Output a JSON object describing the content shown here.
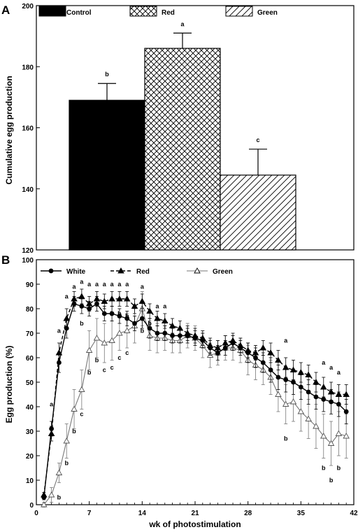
{
  "chart_data": [
    {
      "panel": "A",
      "type": "bar",
      "ylabel": "Cumulative egg production",
      "ylim": [
        120,
        200
      ],
      "yticks": [
        "120",
        "140",
        "160",
        "180",
        "200"
      ],
      "legend": [
        "Control",
        "Red",
        "Green"
      ],
      "legend_position": "top",
      "series": [
        {
          "name": "Control",
          "value": 169,
          "error": 5.5,
          "letter": "b",
          "pattern": "solid-black"
        },
        {
          "name": "Red",
          "value": 186,
          "error": 5,
          "letter": "a",
          "pattern": "crosshatch"
        },
        {
          "name": "Green",
          "value": 144.5,
          "error": 8.5,
          "letter": "c",
          "pattern": "diagonal-hatch"
        }
      ]
    },
    {
      "panel": "B",
      "type": "line",
      "xlabel": "wk of photostimulation",
      "ylabel": "Egg production (%)",
      "xlim": [
        0,
        42
      ],
      "ylim": [
        0,
        100
      ],
      "xticks": [
        "0",
        "7",
        "14",
        "21",
        "28",
        "35",
        "42"
      ],
      "yticks": [
        "0",
        "10",
        "20",
        "30",
        "40",
        "50",
        "60",
        "70",
        "80",
        "90",
        "100"
      ],
      "legend_position": "top-left",
      "x": [
        1,
        2,
        3,
        4,
        5,
        6,
        7,
        8,
        9,
        10,
        11,
        12,
        13,
        14,
        15,
        16,
        17,
        18,
        19,
        20,
        21,
        22,
        23,
        24,
        25,
        26,
        27,
        28,
        29,
        30,
        31,
        32,
        33,
        34,
        35,
        36,
        37,
        38,
        39,
        40,
        41
      ],
      "series": [
        {
          "name": "White",
          "marker": "filled-circle",
          "linestyle": "solid",
          "values": [
            3,
            31,
            58,
            72,
            82,
            81,
            80,
            82,
            78,
            78,
            77,
            76,
            74,
            76,
            72,
            70,
            70,
            69,
            69,
            69,
            68,
            67,
            64,
            62,
            64,
            66,
            64,
            62,
            60,
            58,
            55,
            52,
            51,
            50,
            48,
            46,
            44,
            43,
            42,
            41,
            38
          ],
          "errors": [
            1,
            3,
            4,
            4,
            3,
            3,
            3,
            3,
            3,
            3,
            3,
            3,
            3,
            4,
            4,
            3,
            3,
            3,
            3,
            3,
            3,
            3,
            3,
            3,
            3,
            3,
            3,
            4,
            4,
            4,
            5,
            5,
            5,
            5,
            5,
            5,
            5,
            5,
            5,
            5,
            5
          ]
        },
        {
          "name": "Red",
          "marker": "filled-triangle",
          "linestyle": "dashed",
          "values": [
            4,
            29,
            62,
            76,
            84,
            85,
            82,
            84,
            83,
            84,
            84,
            84,
            81,
            83,
            79,
            76,
            75,
            73,
            72,
            70,
            69,
            68,
            65,
            64,
            66,
            67,
            65,
            63,
            62,
            64,
            62,
            59,
            56,
            55,
            54,
            53,
            50,
            48,
            46,
            45,
            45
          ],
          "errors": [
            1,
            3,
            4,
            4,
            3,
            3,
            3,
            3,
            3,
            3,
            3,
            3,
            3,
            3,
            3,
            3,
            3,
            3,
            3,
            3,
            3,
            3,
            3,
            3,
            3,
            3,
            3,
            3,
            3,
            3,
            4,
            4,
            4,
            4,
            4,
            4,
            4,
            4,
            4,
            4,
            4
          ]
        },
        {
          "name": "Green",
          "marker": "open-triangle",
          "linestyle": "solid-gray",
          "values": [
            0,
            4,
            13,
            26,
            39,
            47,
            63,
            68,
            66,
            67,
            70,
            71,
            73,
            80,
            69,
            68,
            68,
            67,
            67,
            69,
            68,
            65,
            61,
            62,
            64,
            64,
            63,
            59,
            57,
            55,
            52,
            45,
            41,
            42,
            38,
            35,
            32,
            28,
            25,
            29,
            28
          ],
          "errors": [
            1,
            3,
            4,
            7,
            8,
            8,
            8,
            8,
            8,
            8,
            7,
            7,
            7,
            7,
            6,
            6,
            5,
            5,
            5,
            5,
            5,
            5,
            5,
            5,
            5,
            5,
            5,
            6,
            6,
            6,
            7,
            7,
            8,
            8,
            8,
            8,
            9,
            9,
            9,
            9,
            9
          ]
        }
      ],
      "annotations": [
        {
          "x": 2,
          "y": 41,
          "text": "a"
        },
        {
          "x": 3,
          "y": 71,
          "text": "a"
        },
        {
          "x": 4,
          "y": 85,
          "text": "a"
        },
        {
          "x": 5,
          "y": 89,
          "text": "a"
        },
        {
          "x": 6,
          "y": 91,
          "text": "a"
        },
        {
          "x": 7,
          "y": 90,
          "text": "a"
        },
        {
          "x": 8,
          "y": 90,
          "text": "a"
        },
        {
          "x": 9,
          "y": 90,
          "text": "a"
        },
        {
          "x": 10,
          "y": 90,
          "text": "a"
        },
        {
          "x": 11,
          "y": 90,
          "text": "a"
        },
        {
          "x": 12,
          "y": 90,
          "text": "a"
        },
        {
          "x": 14,
          "y": 89,
          "text": "a"
        },
        {
          "x": 16,
          "y": 81,
          "text": "a"
        },
        {
          "x": 17,
          "y": 81,
          "text": "a"
        },
        {
          "x": 33,
          "y": 67,
          "text": "a"
        },
        {
          "x": 38,
          "y": 58,
          "text": "a"
        },
        {
          "x": 39,
          "y": 56,
          "text": "a"
        },
        {
          "x": 40,
          "y": 54,
          "text": "a"
        },
        {
          "x": 3,
          "y": 3,
          "text": "b"
        },
        {
          "x": 4,
          "y": 17,
          "text": "b"
        },
        {
          "x": 5,
          "y": 30,
          "text": "b"
        },
        {
          "x": 6,
          "y": 74,
          "text": "b"
        },
        {
          "x": 7,
          "y": 54,
          "text": "b"
        },
        {
          "x": 8,
          "y": 59,
          "text": "b"
        },
        {
          "x": 9,
          "y": 55,
          "text": "c"
        },
        {
          "x": 10,
          "y": 56,
          "text": "c"
        },
        {
          "x": 11,
          "y": 60,
          "text": "c"
        },
        {
          "x": 12,
          "y": 62,
          "text": "c"
        },
        {
          "x": 6,
          "y": 37,
          "text": "c"
        },
        {
          "x": 10,
          "y": 78,
          "text": "b"
        },
        {
          "x": 11,
          "y": 78,
          "text": "b"
        },
        {
          "x": 12,
          "y": 77,
          "text": "b"
        },
        {
          "x": 14,
          "y": 71,
          "text": "b"
        },
        {
          "x": 15,
          "y": 74,
          "text": "b"
        },
        {
          "x": 33,
          "y": 27,
          "text": "b"
        },
        {
          "x": 38,
          "y": 15,
          "text": "b"
        },
        {
          "x": 39,
          "y": 10,
          "text": "b"
        },
        {
          "x": 40,
          "y": 15,
          "text": "b"
        }
      ]
    }
  ]
}
